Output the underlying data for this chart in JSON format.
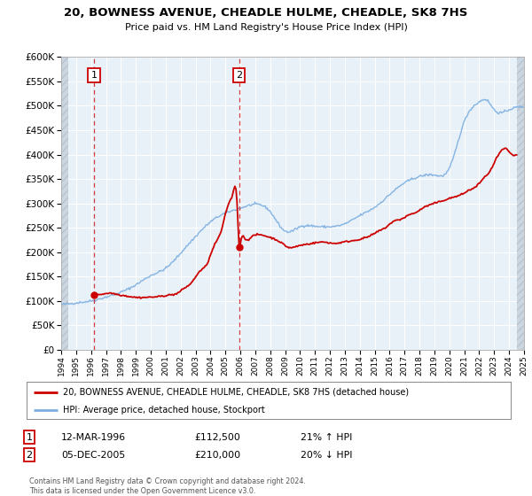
{
  "title": "20, BOWNESS AVENUE, CHEADLE HULME, CHEADLE, SK8 7HS",
  "subtitle": "Price paid vs. HM Land Registry's House Price Index (HPI)",
  "legend_line1": "20, BOWNESS AVENUE, CHEADLE HULME, CHEADLE, SK8 7HS (detached house)",
  "legend_line2": "HPI: Average price, detached house, Stockport",
  "annotation1_label": "1",
  "annotation1_date": "12-MAR-1996",
  "annotation1_price": "£112,500",
  "annotation1_hpi": "21% ↑ HPI",
  "annotation1_year": 1996.2,
  "annotation1_value": 112500,
  "annotation2_label": "2",
  "annotation2_date": "05-DEC-2005",
  "annotation2_price": "£210,000",
  "annotation2_hpi": "20% ↓ HPI",
  "annotation2_year": 2005.92,
  "annotation2_value": 210000,
  "red_color": "#cc0000",
  "blue_color": "#7aade0",
  "background_color": "#dce8f5",
  "plot_bg_color": "#e8f0f8",
  "hatch_color": "#c0ccd8",
  "grid_color": "#ffffff",
  "ylim": [
    0,
    600000
  ],
  "xlim_start": 1994,
  "xlim_end": 2025,
  "data_start_year": 1994.5,
  "data_end_year": 2024.5,
  "footer_text": "Contains HM Land Registry data © Crown copyright and database right 2024.\nThis data is licensed under the Open Government Licence v3.0."
}
